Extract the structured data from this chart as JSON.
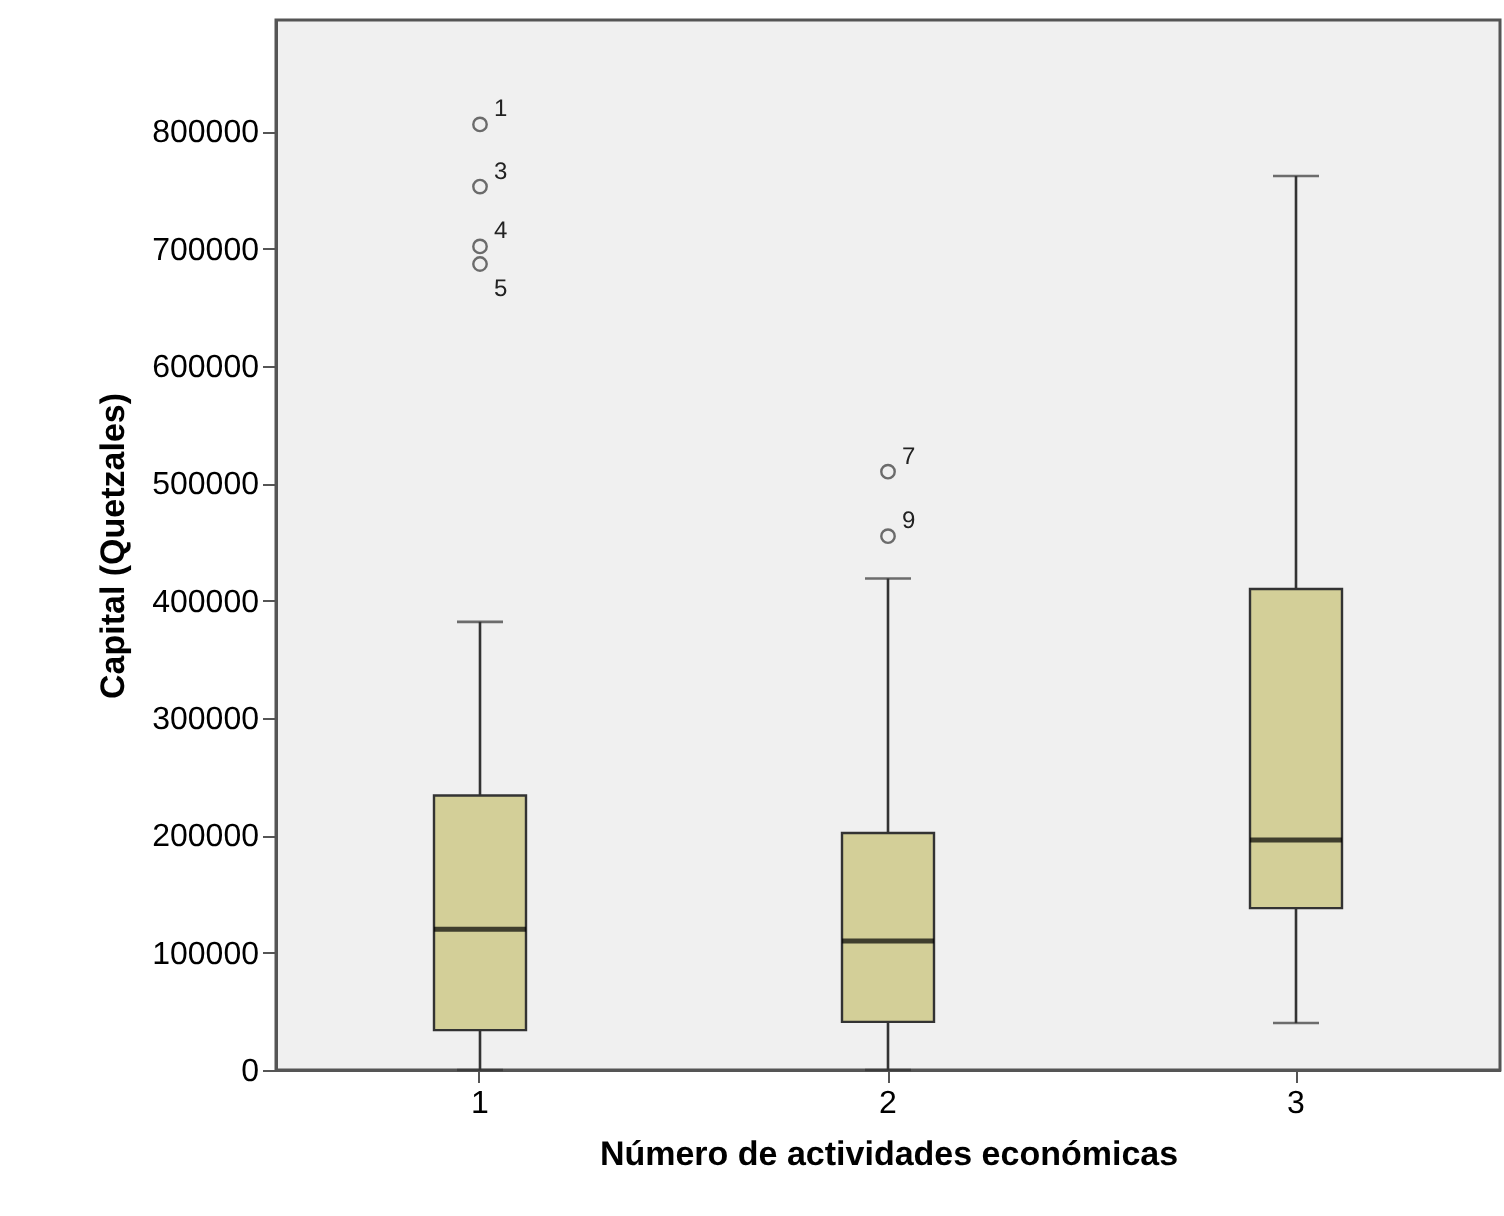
{
  "chart_data": {
    "type": "box",
    "xlabel": "Número de actividades económicas",
    "ylabel": "Capital (Quetzales)",
    "categories": [
      "1",
      "2",
      "3"
    ],
    "boxes": [
      {
        "low": 0,
        "q1": 34000,
        "median": 120000,
        "q3": 234000,
        "high": 382000
      },
      {
        "low": 0,
        "q1": 41000,
        "median": 110000,
        "q3": 202000,
        "high": 419000
      },
      {
        "low": 40000,
        "q1": 138000,
        "median": 196000,
        "q3": 410000,
        "high": 762000
      }
    ],
    "series": [
      {
        "type": "scatter",
        "color": "#333333",
        "x": [
          "1",
          "1",
          "1",
          "1",
          "2",
          "2"
        ],
        "values": [
          806000,
          753000,
          702000,
          687000,
          510000,
          455000
        ]
      }
    ],
    "color": "#d3cf98",
    "ylim": [
      0,
      895000
    ],
    "yticks": [
      0,
      100000,
      200000,
      300000,
      400000,
      500000,
      600000,
      700000,
      800000
    ],
    "grid": false,
    "marker": "circle",
    "annotations": [
      {
        "text": "1",
        "x": "1",
        "y": 806000
      },
      {
        "text": "3",
        "x": "1",
        "y": 753000
      },
      {
        "text": "4",
        "x": "1",
        "y": 702000
      },
      {
        "text": "5",
        "x": "1",
        "y": 687000
      },
      {
        "text": "7",
        "x": "2",
        "y": 510000
      },
      {
        "text": "9",
        "x": "2",
        "y": 455000
      }
    ]
  }
}
